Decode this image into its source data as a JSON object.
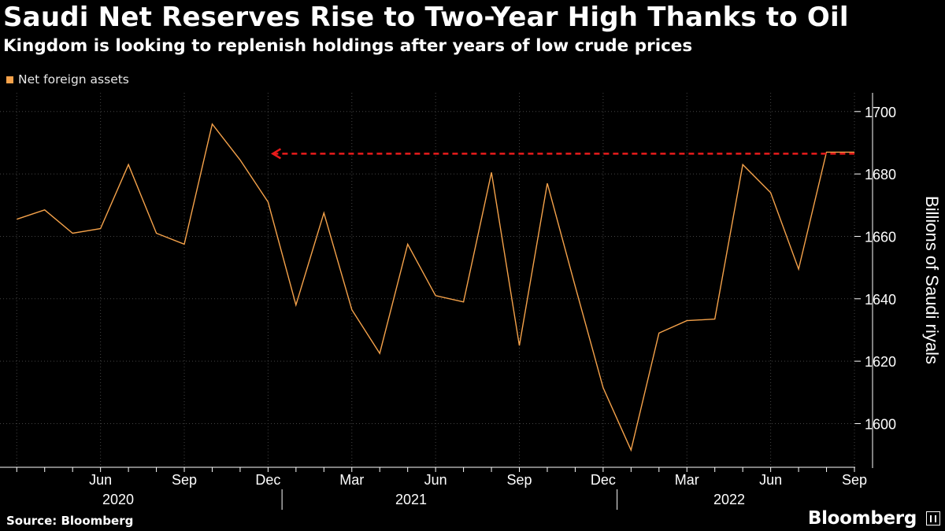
{
  "header": {
    "title": "Saudi Net Reserves Rise to Two-Year High Thanks to Oil",
    "subtitle": "Kingdom is looking to replenish holdings after years of low crude prices"
  },
  "footer": {
    "source": "Source: Bloomberg",
    "brand": "Bloomberg"
  },
  "colors": {
    "series": "#f5a24a",
    "reference_line": "#e81b1b",
    "axis": "#ffffff",
    "grid": "#444444",
    "background": "#000000"
  },
  "chart_data": {
    "type": "line",
    "title": "Saudi Net Reserves Rise to Two-Year High Thanks to Oil",
    "subtitle": "Kingdom is looking to replenish holdings after years of low crude prices",
    "ylabel": "Billions of Saudi riyals",
    "xlabel": "",
    "ylim": [
      1586,
      1706
    ],
    "xlim": [
      "2020-03",
      "2022-09"
    ],
    "yticks": [
      1600,
      1620,
      1640,
      1660,
      1680,
      1700
    ],
    "xticks": [
      {
        "label": "Jun",
        "x": "2020-06"
      },
      {
        "label": "Sep",
        "x": "2020-09"
      },
      {
        "label": "Dec",
        "x": "2020-12"
      },
      {
        "label": "Mar",
        "x": "2021-03"
      },
      {
        "label": "Jun",
        "x": "2021-06"
      },
      {
        "label": "Sep",
        "x": "2021-09"
      },
      {
        "label": "Dec",
        "x": "2021-12"
      },
      {
        "label": "Mar",
        "x": "2022-03"
      },
      {
        "label": "Jun",
        "x": "2022-06"
      },
      {
        "label": "Sep",
        "x": "2022-09"
      }
    ],
    "year_labels": [
      {
        "label": "2020",
        "x": "2020-07"
      },
      {
        "label": "2021",
        "x": "2021-07"
      },
      {
        "label": "2022",
        "x": "2022-05"
      }
    ],
    "year_dividers": [
      "2021-01",
      "2022-01"
    ],
    "legend_position": "top-left",
    "grid": false,
    "series": [
      {
        "name": "Net foreign assets",
        "x": [
          "2020-03",
          "2020-04",
          "2020-05",
          "2020-06",
          "2020-07",
          "2020-08",
          "2020-09",
          "2020-10",
          "2020-11",
          "2020-12",
          "2021-01",
          "2021-02",
          "2021-03",
          "2021-04",
          "2021-05",
          "2021-06",
          "2021-07",
          "2021-08",
          "2021-09",
          "2021-10",
          "2021-11",
          "2021-12",
          "2022-01",
          "2022-02",
          "2022-03",
          "2022-04",
          "2022-05",
          "2022-06",
          "2022-07",
          "2022-08",
          "2022-09"
        ],
        "values": [
          1665.5,
          1668.5,
          1661,
          1662.5,
          1683,
          1661,
          1657.5,
          1696,
          1684.5,
          1671,
          1638,
          1667.5,
          1636.5,
          1622.5,
          1657.5,
          1641,
          1639,
          1680.5,
          1625,
          1677,
          1644,
          1611.5,
          1591.5,
          1629,
          1633,
          1633.5,
          1683,
          1674,
          1649.5,
          1687,
          1687
        ]
      }
    ],
    "annotations": [
      {
        "type": "reference_line",
        "style": "dashed-arrow",
        "y": 1686.5,
        "from": "2022-09",
        "to": "2020-12"
      }
    ]
  }
}
